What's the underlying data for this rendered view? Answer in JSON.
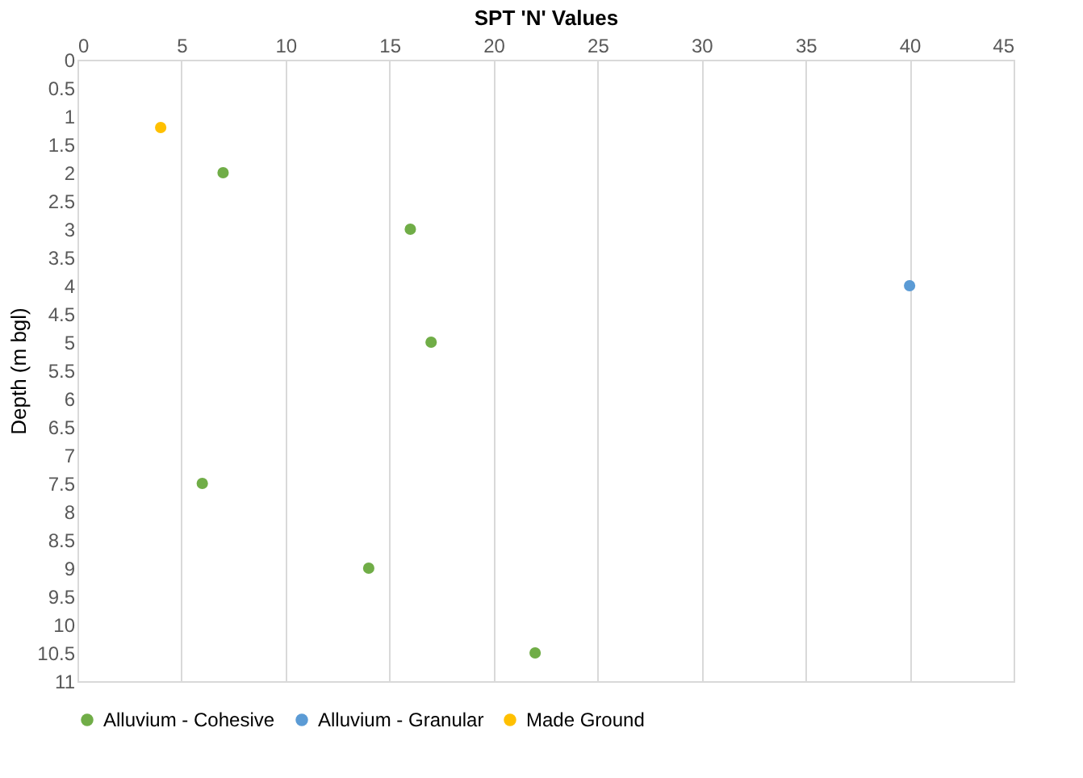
{
  "chart_data": {
    "type": "scatter",
    "xlabel": "SPT 'N' Values",
    "ylabel": "Depth (m bgl)",
    "xlim": [
      0,
      45
    ],
    "xticks": [
      0,
      5,
      10,
      15,
      20,
      25,
      30,
      35,
      40,
      45
    ],
    "ylim": [
      11,
      0
    ],
    "yticks": [
      0,
      0.5,
      1,
      1.5,
      2,
      2.5,
      3,
      3.5,
      4,
      4.5,
      5,
      5.5,
      6,
      6.5,
      7,
      7.5,
      8,
      8.5,
      9,
      9.5,
      10,
      10.5,
      11
    ],
    "grid": "x",
    "legend": "bottom",
    "marker": "circle",
    "series": [
      {
        "name": "Alluvium - Cohesive",
        "color": "#70ad47",
        "x": [
          7,
          16,
          17,
          6,
          14,
          22
        ],
        "values": [
          2,
          3,
          5,
          7.5,
          9,
          10.5
        ]
      },
      {
        "name": "Alluvium - Granular",
        "color": "#5b9bd5",
        "x": [
          40
        ],
        "values": [
          4
        ]
      },
      {
        "name": "Made Ground",
        "color": "#ffc000",
        "x": [
          4
        ],
        "values": [
          1.2
        ]
      }
    ]
  }
}
